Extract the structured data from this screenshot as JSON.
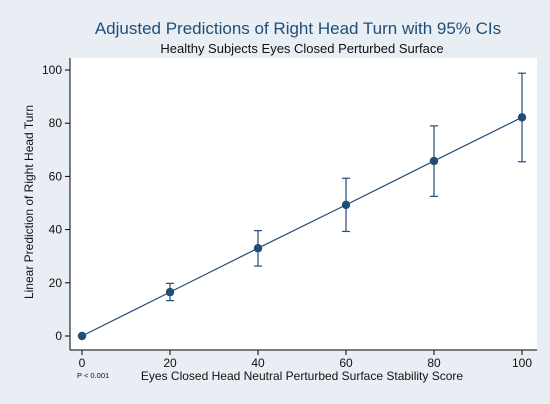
{
  "chart_data": {
    "type": "scatter",
    "title": "Adjusted Predictions of Right Head Turn with 95% CIs",
    "subtitle": "Healthy Subjects Eyes Closed Perturbed Surface",
    "xlabel": "Eyes Closed Head Neutral Perturbed Surface Stability Score",
    "ylabel": "Linear Prediction of Right Head Turn",
    "annotation": "P < 0.001",
    "xlim": [
      0,
      100
    ],
    "ylim": [
      0,
      100
    ],
    "xticks": [
      "0",
      "20",
      "40",
      "60",
      "80",
      "100"
    ],
    "yticks": [
      "0",
      "20",
      "40",
      "60",
      "80",
      "100"
    ],
    "grid": false,
    "points": [
      {
        "x": 0,
        "y": 0,
        "ci_low": 0,
        "ci_high": 0
      },
      {
        "x": 20,
        "y": 16.5,
        "ci_low": 13.3,
        "ci_high": 19.8
      },
      {
        "x": 40,
        "y": 33,
        "ci_low": 26.3,
        "ci_high": 39.6
      },
      {
        "x": 60,
        "y": 49.3,
        "ci_low": 39.3,
        "ci_high": 59.3
      },
      {
        "x": 80,
        "y": 65.8,
        "ci_low": 52.5,
        "ci_high": 79
      },
      {
        "x": 100,
        "y": 82.2,
        "ci_low": 65.5,
        "ci_high": 98.8
      }
    ],
    "colors": {
      "outer_background": "#e8eef4",
      "plot_background": "#ffffff",
      "line": "#1f4e79",
      "marker": "#1f4e79",
      "title": "#1f4e79"
    }
  }
}
